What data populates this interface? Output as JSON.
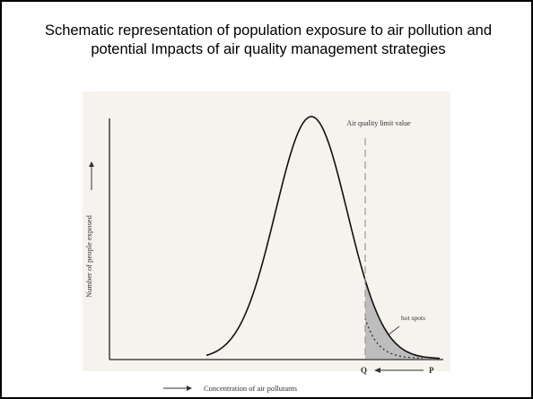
{
  "title": "Schematic representation of population exposure to air pollution and potential Impacts of air quality management strategies",
  "diagram": {
    "y_axis_label": "Number of people exposed",
    "x_axis_label": "Concentration of air pollutants",
    "limit_label": "Air quality limit value",
    "hot_spots_label": "hot spots",
    "q_label": "Q",
    "p_label": "P"
  }
}
